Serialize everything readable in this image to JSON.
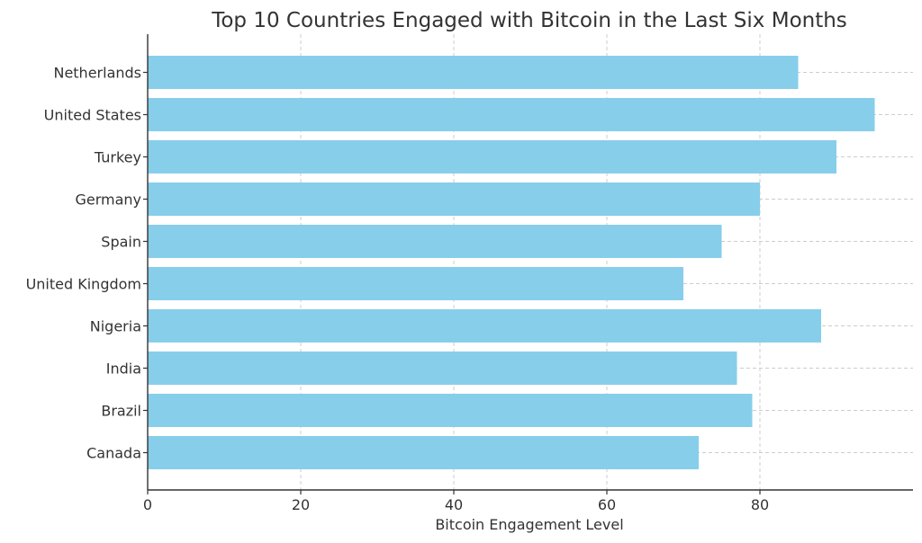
{
  "chart_data": {
    "type": "bar",
    "orientation": "horizontal",
    "title": "Top 10 Countries Engaged with Bitcoin in the Last Six Months",
    "xlabel": "Bitcoin Engagement Level",
    "ylabel": "",
    "xlim": [
      0,
      100
    ],
    "xticks": [
      0,
      20,
      40,
      60,
      80
    ],
    "grid": true,
    "bar_color": "#87CEEB",
    "categories": [
      "Netherlands",
      "United States",
      "Turkey",
      "Germany",
      "Spain",
      "United Kingdom",
      "Nigeria",
      "India",
      "Brazil",
      "Canada"
    ],
    "values": [
      85,
      95,
      90,
      80,
      75,
      70,
      88,
      77,
      79,
      72
    ]
  }
}
